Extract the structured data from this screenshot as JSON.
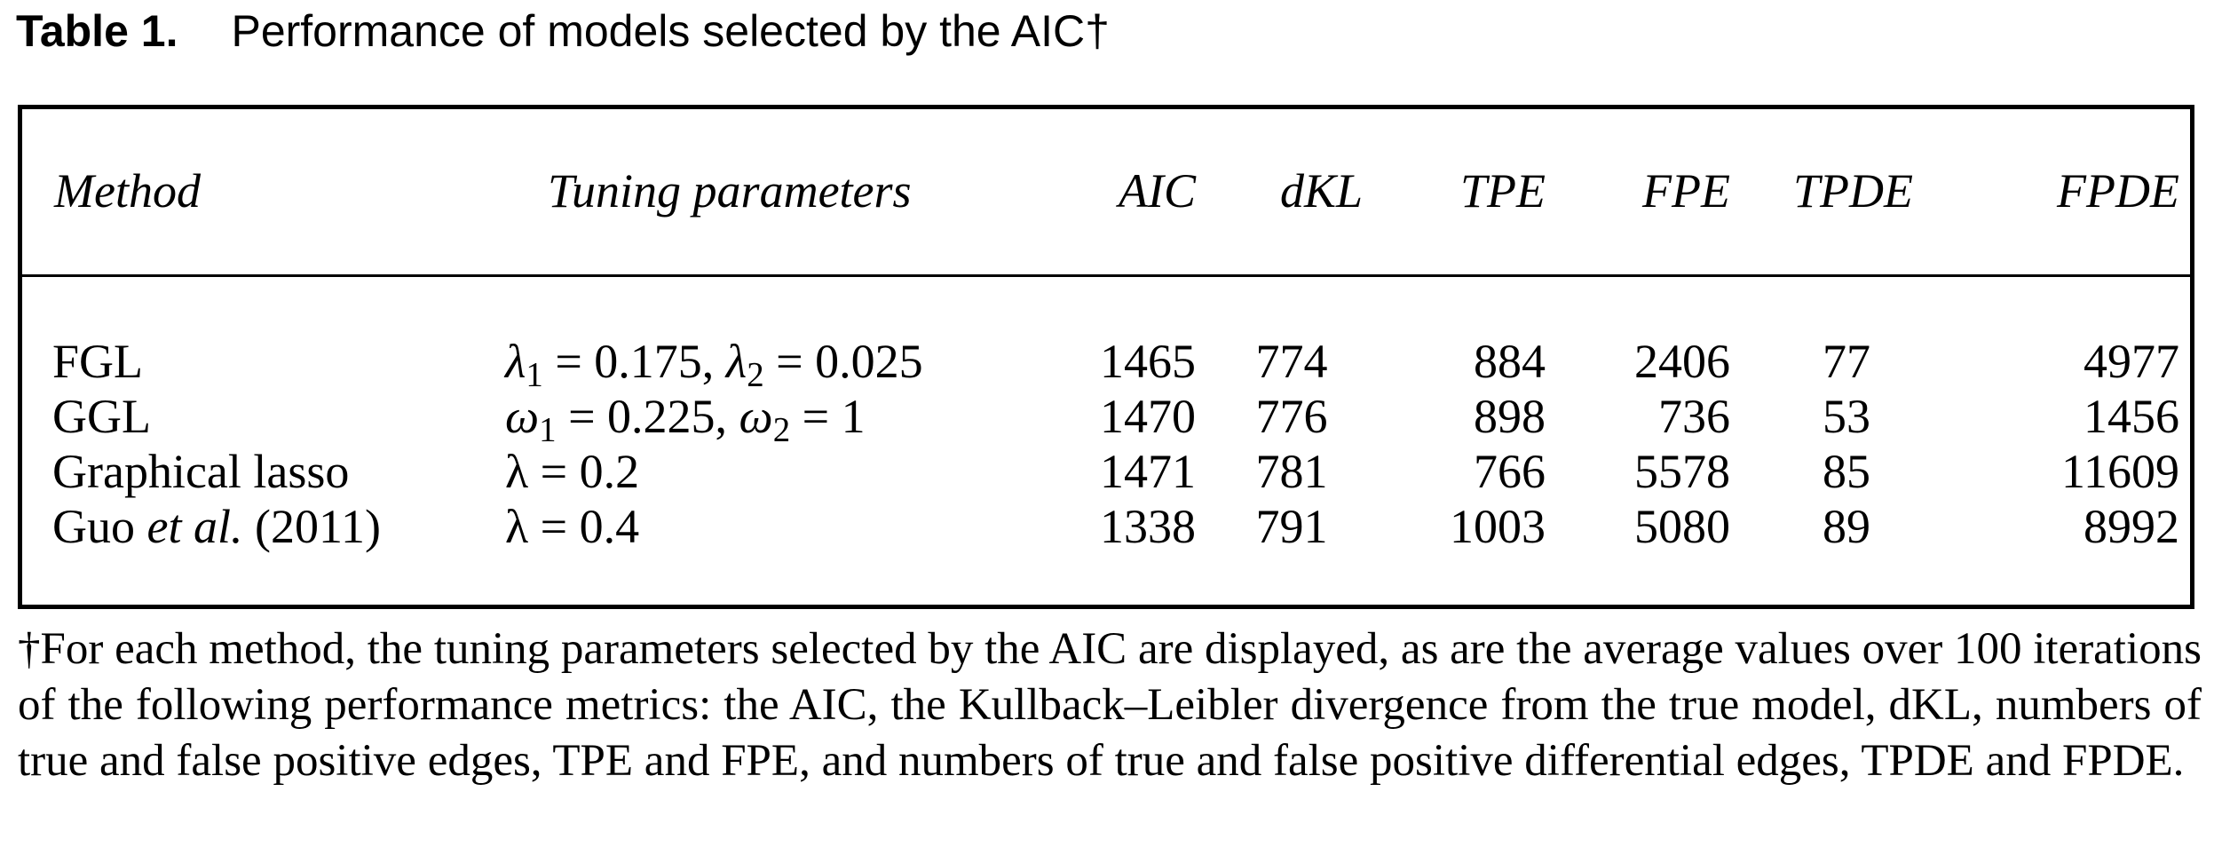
{
  "caption": {
    "label": "Table 1.",
    "title": "Performance of models selected by the AIC†"
  },
  "table": {
    "headers": {
      "method": "Method",
      "tuning": "Tuning parameters",
      "aic": "AIC",
      "dkl": "dKL",
      "tpe": "TPE",
      "fpe": "FPE",
      "tpde": "TPDE",
      "fpde": "FPDE"
    },
    "rows": [
      {
        "method": "FGL",
        "param1_symbol": "λ",
        "param1_sub": "1",
        "param1_value": " = 0.175, ",
        "param2_symbol": "λ",
        "param2_sub": "2",
        "param2_value": " = 0.025",
        "aic": "1465",
        "dkl": "774",
        "tpe": "884",
        "fpe": "2406",
        "tpde": "77",
        "fpde": "4977"
      },
      {
        "method": "GGL",
        "param1_symbol": "ω",
        "param1_sub": "1",
        "param1_value": " = 0.225, ",
        "param2_symbol": "ω",
        "param2_sub": "2",
        "param2_value": " = 1",
        "aic": "1470",
        "dkl": "776",
        "tpe": "898",
        "fpe": "736",
        "tpde": "53",
        "fpde": "1456"
      },
      {
        "method": "Graphical lasso",
        "param_text": "λ = 0.2",
        "aic": "1471",
        "dkl": "781",
        "tpe": "766",
        "fpe": "5578",
        "tpde": "85",
        "fpde": "11609"
      },
      {
        "method_pre": "Guo ",
        "method_italic": "et al.",
        "method_post": " (2011)",
        "param_text": "λ = 0.4",
        "aic": "1338",
        "dkl": "791",
        "tpe": "1003",
        "fpe": "5080",
        "tpde": "89",
        "fpde": "8992"
      }
    ]
  },
  "footnote": "†For each method, the tuning parameters selected by the AIC are displayed, as are the average values over 100 iterations of the following performance metrics: the AIC, the Kullback–Leibler divergence from the true model, dKL, numbers of true and false positive edges, TPE and FPE, and numbers of true and false positive differential edges, TPDE and FPDE."
}
